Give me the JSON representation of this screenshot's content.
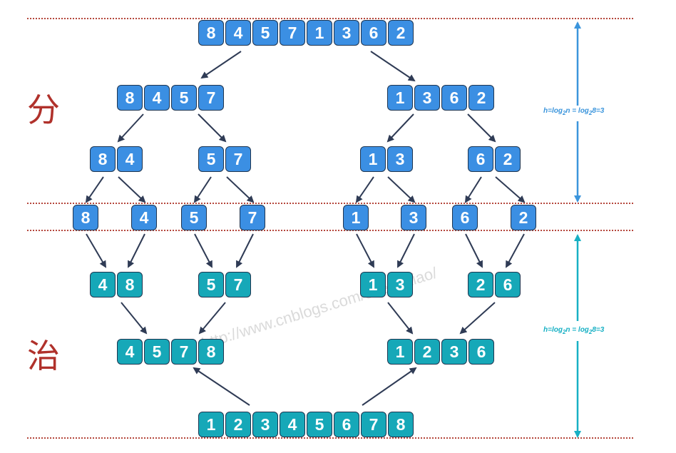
{
  "labels": {
    "divide": "分",
    "conquer": "治"
  },
  "formula": {
    "h": "h=log",
    "sub": "2",
    "n": "n = log",
    "sub2": "2",
    "tail": "8=3"
  },
  "watermark": "http://www.cnblogs.com/chengxiao/",
  "colors": {
    "divide_box": "#3b8fe3",
    "conquer_box": "#16a8b8",
    "divide_arrow": "#3b95dc",
    "conquer_arrow": "#17b0c4",
    "dotted_line": "#b5473c",
    "arrow": "#2f3b55"
  },
  "divide_levels": [
    [
      [
        8,
        4,
        5,
        7,
        1,
        3,
        6,
        2
      ]
    ],
    [
      [
        8,
        4,
        5,
        7
      ],
      [
        1,
        3,
        6,
        2
      ]
    ],
    [
      [
        8,
        4
      ],
      [
        5,
        7
      ],
      [
        1,
        3
      ],
      [
        6,
        2
      ]
    ],
    [
      [
        8
      ],
      [
        4
      ],
      [
        5
      ],
      [
        7
      ],
      [
        1
      ],
      [
        3
      ],
      [
        6
      ],
      [
        2
      ]
    ]
  ],
  "conquer_levels": [
    [
      [
        4,
        8
      ],
      [
        5,
        7
      ],
      [
        1,
        3
      ],
      [
        2,
        6
      ]
    ],
    [
      [
        4,
        5,
        7,
        8
      ],
      [
        1,
        2,
        3,
        6
      ]
    ],
    [
      [
        1,
        2,
        3,
        4,
        5,
        6,
        7,
        8
      ]
    ]
  ]
}
